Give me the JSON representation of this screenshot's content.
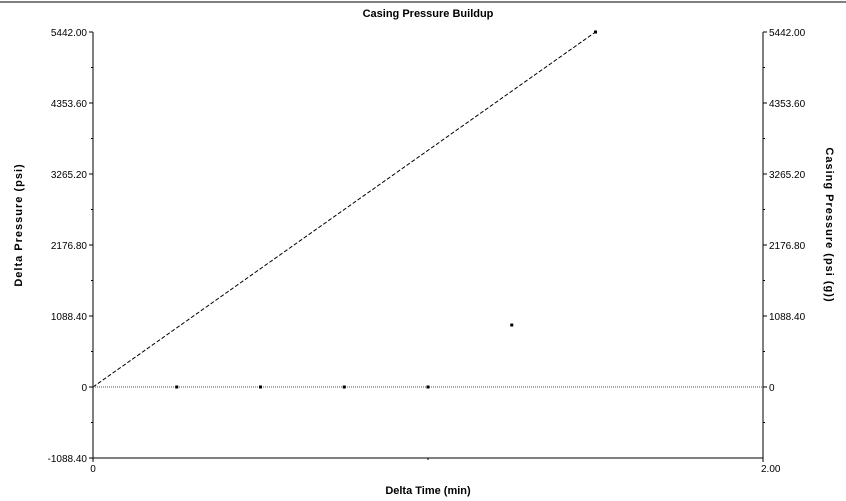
{
  "chart_data": {
    "type": "scatter",
    "title": "Casing Pressure Buildup",
    "xlabel": "Delta Time (min)",
    "ylabel": "Delta Pressure (psi)",
    "y2label": "Casing Pressure (psi (g))",
    "xlim": [
      0,
      2.0
    ],
    "ylim": [
      -1088.4,
      5442.0
    ],
    "x_tick_labels": [
      "0",
      "2.00"
    ],
    "y_ticks": [
      5442.0,
      4353.6,
      3265.2,
      2176.8,
      1088.4,
      0,
      -1088.4
    ],
    "y_tick_labels": [
      "5442.00",
      "4353.60",
      "3265.20",
      "2176.80",
      "1088.40",
      "0",
      "-1088.40"
    ],
    "y2_tick_labels": [
      "5442.00",
      "4353.60",
      "3265.20",
      "2176.80",
      "1088.40",
      "0"
    ],
    "grid": false,
    "series": [
      {
        "style": "dashed-line",
        "color": "#000000",
        "x": [
          0,
          1.5
        ],
        "y": [
          0,
          5442.0
        ]
      },
      {
        "style": "dotted-line",
        "color": "#555555",
        "x": [
          0,
          2.0
        ],
        "y": [
          0,
          0
        ]
      },
      {
        "style": "points",
        "color": "#000000",
        "x": [
          0.25,
          0.5,
          0.75,
          1.0,
          1.25,
          1.5
        ],
        "y": [
          0,
          0,
          0,
          0,
          950,
          5442.0
        ]
      }
    ]
  }
}
